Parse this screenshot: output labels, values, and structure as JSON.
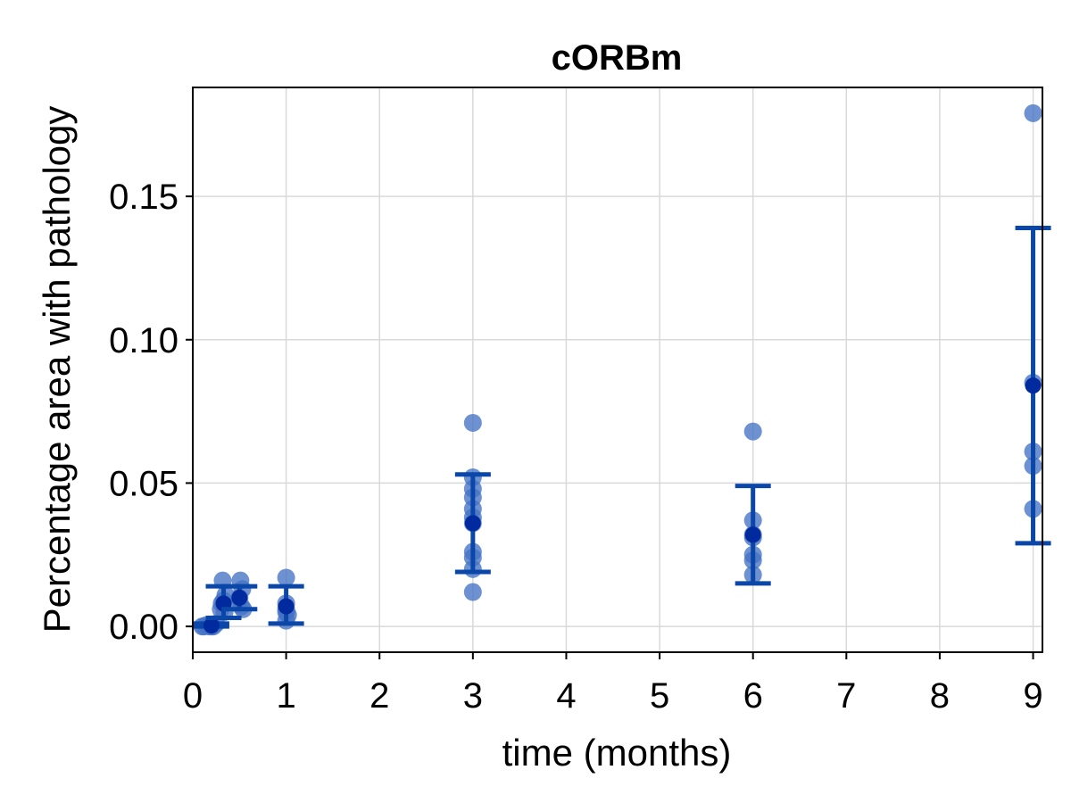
{
  "chart_data": {
    "type": "scatter",
    "title": "cORBm",
    "xlabel": "time (months)",
    "ylabel": "Percentage area with pathology",
    "xlim": [
      0,
      9.1
    ],
    "ylim": [
      -0.009,
      0.188
    ],
    "x_ticks": [
      0,
      1,
      2,
      3,
      4,
      5,
      6,
      7,
      8,
      9
    ],
    "x_tick_labels": [
      "0",
      "1",
      "2",
      "3",
      "4",
      "5",
      "6",
      "7",
      "8",
      "9"
    ],
    "y_ticks": [
      0.0,
      0.05,
      0.1,
      0.15
    ],
    "y_tick_labels": [
      "0.00",
      "0.05",
      "0.10",
      "0.15"
    ],
    "grid": true,
    "colors": {
      "points": "#4472c4",
      "error_bars": "#0a47a8",
      "mean": "#002a9e"
    },
    "points": [
      {
        "x": 0.1,
        "y": 0.0
      },
      {
        "x": 0.12,
        "y": 0.0
      },
      {
        "x": 0.15,
        "y": 0.0005
      },
      {
        "x": 0.18,
        "y": 0.0
      },
      {
        "x": 0.2,
        "y": 0.0
      },
      {
        "x": 0.22,
        "y": 0.0
      },
      {
        "x": 0.25,
        "y": 0.001
      },
      {
        "x": 0.3,
        "y": 0.006
      },
      {
        "x": 0.31,
        "y": 0.008
      },
      {
        "x": 0.32,
        "y": 0.016
      },
      {
        "x": 0.33,
        "y": 0.009
      },
      {
        "x": 0.34,
        "y": 0.005
      },
      {
        "x": 0.35,
        "y": 0.011
      },
      {
        "x": 0.48,
        "y": 0.008
      },
      {
        "x": 0.5,
        "y": 0.01
      },
      {
        "x": 0.51,
        "y": 0.016
      },
      {
        "x": 0.52,
        "y": 0.007
      },
      {
        "x": 0.53,
        "y": 0.013
      },
      {
        "x": 0.54,
        "y": 0.006
      },
      {
        "x": 1.0,
        "y": 0.017
      },
      {
        "x": 1.0,
        "y": 0.008
      },
      {
        "x": 1.0,
        "y": 0.005
      },
      {
        "x": 1.0,
        "y": 0.002
      },
      {
        "x": 1.0,
        "y": 0.006
      },
      {
        "x": 1.02,
        "y": 0.004
      },
      {
        "x": 3.0,
        "y": 0.071
      },
      {
        "x": 3.0,
        "y": 0.052
      },
      {
        "x": 3.0,
        "y": 0.048
      },
      {
        "x": 3.0,
        "y": 0.045
      },
      {
        "x": 3.0,
        "y": 0.041
      },
      {
        "x": 3.0,
        "y": 0.038
      },
      {
        "x": 3.0,
        "y": 0.036
      },
      {
        "x": 3.0,
        "y": 0.026
      },
      {
        "x": 3.0,
        "y": 0.024
      },
      {
        "x": 3.0,
        "y": 0.02
      },
      {
        "x": 3.0,
        "y": 0.012
      },
      {
        "x": 6.0,
        "y": 0.068
      },
      {
        "x": 6.0,
        "y": 0.037
      },
      {
        "x": 6.0,
        "y": 0.032
      },
      {
        "x": 6.0,
        "y": 0.031
      },
      {
        "x": 6.0,
        "y": 0.025
      },
      {
        "x": 6.0,
        "y": 0.023
      },
      {
        "x": 6.0,
        "y": 0.018
      },
      {
        "x": 9.0,
        "y": 0.179
      },
      {
        "x": 9.0,
        "y": 0.085
      },
      {
        "x": 9.0,
        "y": 0.061
      },
      {
        "x": 9.0,
        "y": 0.056
      },
      {
        "x": 9.0,
        "y": 0.041
      }
    ],
    "summary": [
      {
        "x": 0.2,
        "mean": 0.0003,
        "lower": 0.0,
        "upper": 0.001
      },
      {
        "x": 0.33,
        "mean": 0.008,
        "lower": 0.003,
        "upper": 0.014
      },
      {
        "x": 0.5,
        "mean": 0.01,
        "lower": 0.006,
        "upper": 0.014
      },
      {
        "x": 1.0,
        "mean": 0.007,
        "lower": 0.001,
        "upper": 0.014
      },
      {
        "x": 3.0,
        "mean": 0.036,
        "lower": 0.019,
        "upper": 0.053
      },
      {
        "x": 6.0,
        "mean": 0.032,
        "lower": 0.015,
        "upper": 0.049
      },
      {
        "x": 9.0,
        "mean": 0.084,
        "lower": 0.029,
        "upper": 0.139
      }
    ]
  }
}
